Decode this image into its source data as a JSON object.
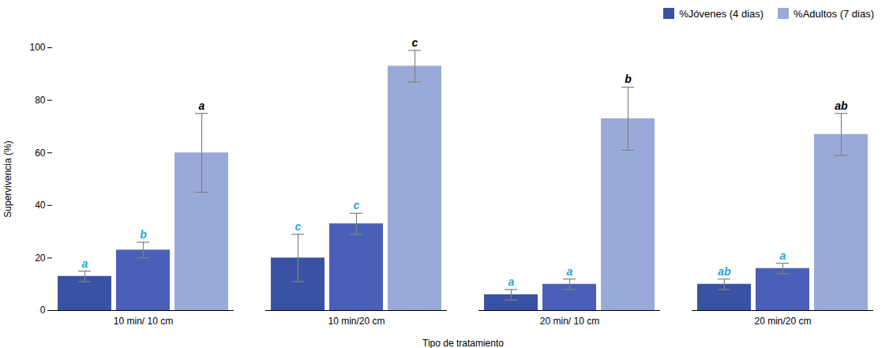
{
  "chart_data": {
    "type": "bar",
    "xlabel": "Tipo de tratamiento",
    "ylabel": "Supervivencia (%)",
    "categories": [
      "10 min/ 10 cm",
      "10 min/20 cm",
      "20 min/ 10 cm",
      "20 min/20 cm"
    ],
    "series": [
      {
        "name": "%Jóvenes (4 dias)",
        "color": "#3a52a4",
        "values": [
          13,
          20,
          6,
          10
        ],
        "errors": [
          2,
          9,
          2,
          2
        ],
        "annotations": [
          "a",
          "c",
          "a",
          "ab"
        ],
        "annotation_color": "#1AABDC"
      },
      {
        "color": "#4a60b8",
        "values": [
          23,
          33,
          10,
          16
        ],
        "errors": [
          3,
          4,
          2,
          2
        ],
        "annotations": [
          "b",
          "c",
          "a",
          "a"
        ],
        "annotation_color": "#1AABDC"
      },
      {
        "name": "%Adultos (7 dias)",
        "color": "#9aaad8",
        "values": [
          60,
          93,
          73,
          67
        ],
        "errors": [
          15,
          6,
          12,
          8
        ],
        "annotations": [
          "a",
          "c",
          "b",
          "ab"
        ],
        "annotation_color": "#000000"
      }
    ],
    "ylim": [
      0,
      100
    ],
    "yticks": [
      0,
      20,
      40,
      60,
      80,
      100
    ],
    "grid": false,
    "legend": "upper right"
  }
}
